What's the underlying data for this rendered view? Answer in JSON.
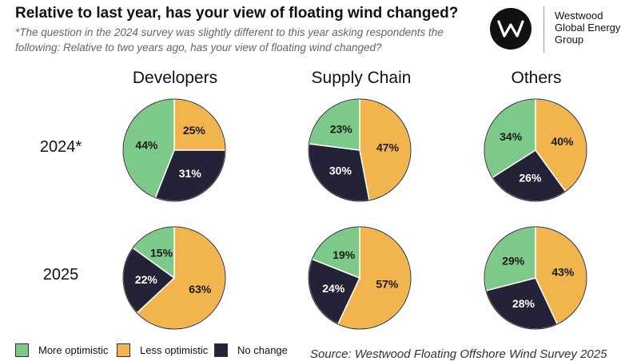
{
  "header": {
    "title": "Relative to last year, has your view of floating wind changed?",
    "subtitle": "*The question in the 2024 survey was slightly different to this year asking respondents the following: Relative to two years ago, has your view of floating wind changed?"
  },
  "logo": {
    "icon": "w-monogram-icon",
    "lines": [
      "Westwood",
      "Global Energy",
      "Group"
    ]
  },
  "columns": [
    "Developers",
    "Supply Chain",
    "Others"
  ],
  "rows": [
    "2024*",
    "2025"
  ],
  "legend": {
    "items": [
      {
        "label": "More optimistic",
        "color": "#7dc98a"
      },
      {
        "label": "Less optimistic",
        "color": "#f2b54e"
      },
      {
        "label": "No change",
        "color": "#232236"
      }
    ]
  },
  "source": "Source: Westwood Floating Offshore Wind Survey 2025",
  "chart_data": [
    {
      "type": "pie",
      "group": "Developers",
      "year": "2024*",
      "categories": [
        "More optimistic",
        "Less optimistic",
        "No change"
      ],
      "values": [
        44,
        25,
        31
      ],
      "labels": [
        "44%",
        "25%",
        "31%"
      ]
    },
    {
      "type": "pie",
      "group": "Supply Chain",
      "year": "2024*",
      "categories": [
        "More optimistic",
        "Less optimistic",
        "No change"
      ],
      "values": [
        23,
        47,
        30
      ],
      "labels": [
        "23%",
        "47%",
        "30%"
      ]
    },
    {
      "type": "pie",
      "group": "Others",
      "year": "2024*",
      "categories": [
        "More optimistic",
        "Less optimistic",
        "No change"
      ],
      "values": [
        34,
        40,
        26
      ],
      "labels": [
        "34%",
        "40%",
        "26%"
      ]
    },
    {
      "type": "pie",
      "group": "Developers",
      "year": "2025",
      "categories": [
        "More optimistic",
        "Less optimistic",
        "No change"
      ],
      "values": [
        15,
        63,
        22
      ],
      "labels": [
        "15%",
        "63%",
        "22%"
      ]
    },
    {
      "type": "pie",
      "group": "Supply Chain",
      "year": "2025",
      "categories": [
        "More optimistic",
        "Less optimistic",
        "No change"
      ],
      "values": [
        19,
        57,
        24
      ],
      "labels": [
        "19%",
        "57%",
        "24%"
      ]
    },
    {
      "type": "pie",
      "group": "Others",
      "year": "2025",
      "categories": [
        "More optimistic",
        "Less optimistic",
        "No change"
      ],
      "values": [
        29,
        43,
        28
      ],
      "labels": [
        "29%",
        "43%",
        "28%"
      ]
    }
  ]
}
